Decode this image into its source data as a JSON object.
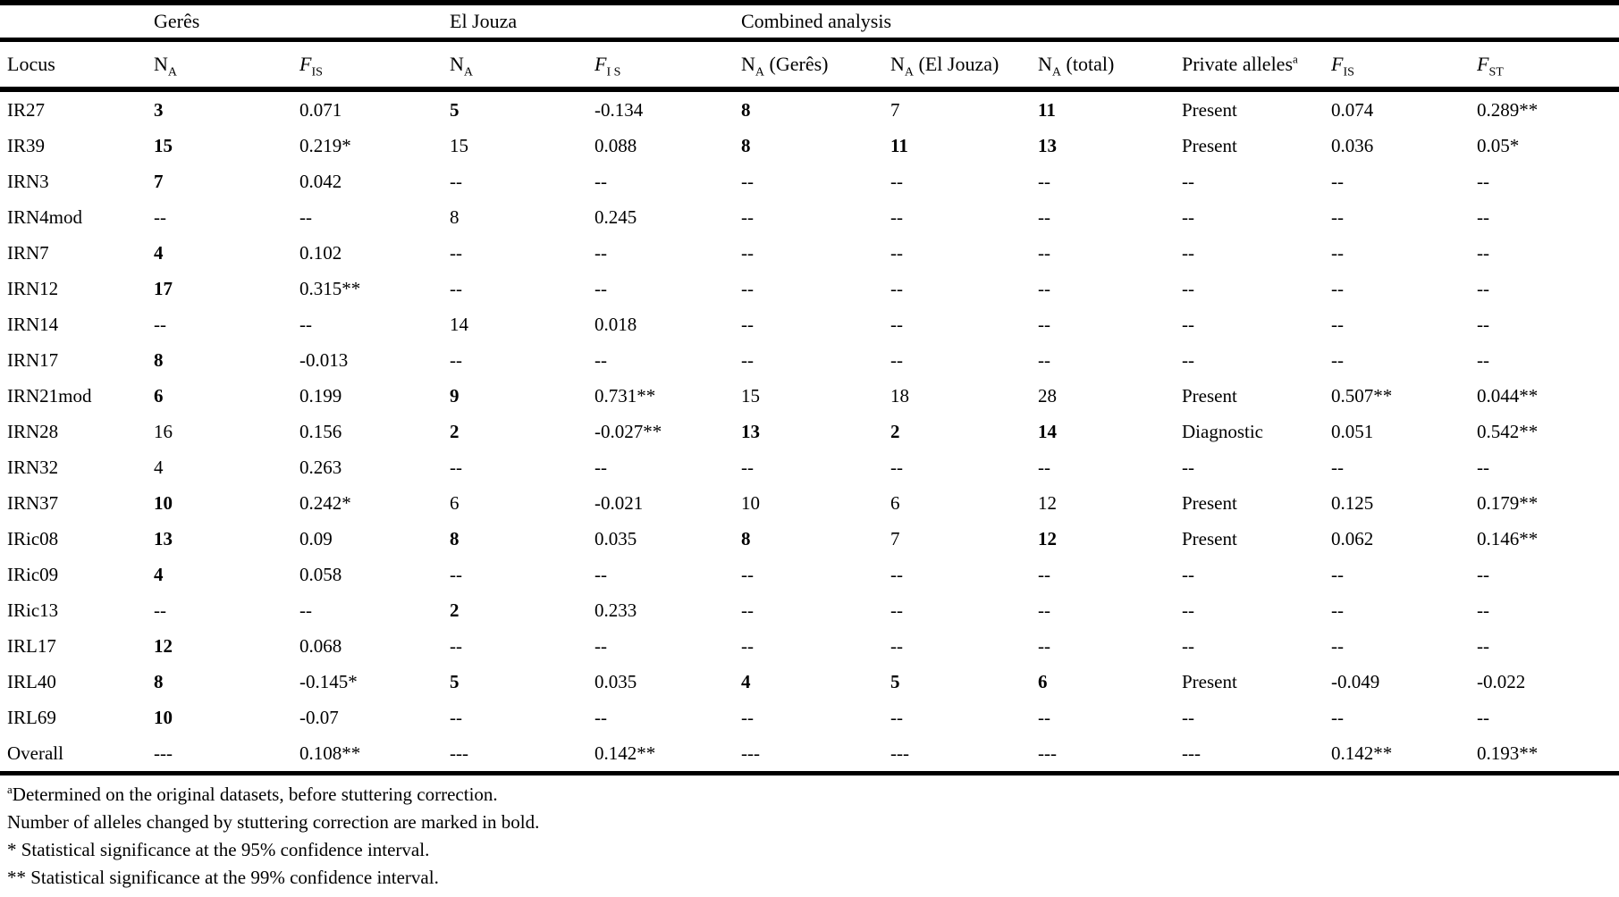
{
  "page": {
    "background": "#ffffff",
    "text_color": "#000000",
    "rule_color": "#000000"
  },
  "table": {
    "group_headers": [
      {
        "label": "",
        "span": 1
      },
      {
        "label": "Gerês",
        "span": 2
      },
      {
        "label": "El Jouza",
        "span": 2
      },
      {
        "label": "Combined analysis",
        "span": 6
      }
    ],
    "columns": [
      {
        "text": "Locus"
      },
      {
        "base": "N",
        "sub": "A",
        "italic": false
      },
      {
        "base": "F",
        "sub": "IS",
        "italic": true
      },
      {
        "base": "N",
        "sub": "A",
        "italic": false
      },
      {
        "base": "F",
        "sub": "I S",
        "italic": true
      },
      {
        "base": "N",
        "sub": "A",
        "rest": " (Gerês)",
        "italic": false
      },
      {
        "base": "N",
        "sub": "A",
        "rest": " (El Jouza)",
        "italic": false
      },
      {
        "base": "N",
        "sub": "A",
        "rest": " (total)",
        "italic": false
      },
      {
        "text": "Private alleles",
        "sup": "a"
      },
      {
        "base": "F",
        "sub": "IS",
        "italic": true
      },
      {
        "base": "F",
        "sub": "ST",
        "italic": true
      }
    ],
    "rows": [
      {
        "locus": "IR27",
        "cells": [
          {
            "t": "3",
            "b": true
          },
          {
            "t": "0.071"
          },
          {
            "t": "5",
            "b": true
          },
          {
            "t": "-0.134"
          },
          {
            "t": "8",
            "b": true
          },
          {
            "t": "7"
          },
          {
            "t": "11",
            "b": true
          },
          {
            "t": "Present"
          },
          {
            "t": "0.074"
          },
          {
            "t": "0.289**"
          }
        ]
      },
      {
        "locus": "IR39",
        "cells": [
          {
            "t": "15",
            "b": true
          },
          {
            "t": "0.219*"
          },
          {
            "t": "15"
          },
          {
            "t": "0.088"
          },
          {
            "t": "8",
            "b": true
          },
          {
            "t": "11",
            "b": true
          },
          {
            "t": "13",
            "b": true
          },
          {
            "t": "Present"
          },
          {
            "t": "0.036"
          },
          {
            "t": "0.05*"
          }
        ]
      },
      {
        "locus": "IRN3",
        "cells": [
          {
            "t": "7",
            "b": true
          },
          {
            "t": "0.042"
          },
          {
            "t": "--"
          },
          {
            "t": "--"
          },
          {
            "t": "--"
          },
          {
            "t": "--"
          },
          {
            "t": "--"
          },
          {
            "t": "--"
          },
          {
            "t": "--"
          },
          {
            "t": "--"
          }
        ]
      },
      {
        "locus": "IRN4mod",
        "cells": [
          {
            "t": "--"
          },
          {
            "t": "--"
          },
          {
            "t": "8"
          },
          {
            "t": "0.245"
          },
          {
            "t": "--"
          },
          {
            "t": "--"
          },
          {
            "t": "--"
          },
          {
            "t": "--"
          },
          {
            "t": "--"
          },
          {
            "t": "--"
          }
        ]
      },
      {
        "locus": "IRN7",
        "cells": [
          {
            "t": "4",
            "b": true
          },
          {
            "t": "0.102"
          },
          {
            "t": "--"
          },
          {
            "t": "--"
          },
          {
            "t": "--"
          },
          {
            "t": "--"
          },
          {
            "t": "--"
          },
          {
            "t": "--"
          },
          {
            "t": "--"
          },
          {
            "t": "--"
          }
        ]
      },
      {
        "locus": "IRN12",
        "cells": [
          {
            "t": "17",
            "b": true
          },
          {
            "t": "0.315**"
          },
          {
            "t": "--"
          },
          {
            "t": "--"
          },
          {
            "t": "--"
          },
          {
            "t": "--"
          },
          {
            "t": "--"
          },
          {
            "t": "--"
          },
          {
            "t": "--"
          },
          {
            "t": "--"
          }
        ]
      },
      {
        "locus": "IRN14",
        "cells": [
          {
            "t": "--"
          },
          {
            "t": "--"
          },
          {
            "t": "14"
          },
          {
            "t": "0.018"
          },
          {
            "t": "--"
          },
          {
            "t": "--"
          },
          {
            "t": "--"
          },
          {
            "t": "--"
          },
          {
            "t": "--"
          },
          {
            "t": "--"
          }
        ]
      },
      {
        "locus": "IRN17",
        "cells": [
          {
            "t": "8",
            "b": true
          },
          {
            "t": "-0.013"
          },
          {
            "t": "--"
          },
          {
            "t": "--"
          },
          {
            "t": "--"
          },
          {
            "t": "--"
          },
          {
            "t": "--"
          },
          {
            "t": "--"
          },
          {
            "t": "--"
          },
          {
            "t": "--"
          }
        ]
      },
      {
        "locus": "IRN21mod",
        "cells": [
          {
            "t": "6",
            "b": true
          },
          {
            "t": "0.199"
          },
          {
            "t": "9",
            "b": true
          },
          {
            "t": "0.731**"
          },
          {
            "t": "15"
          },
          {
            "t": "18"
          },
          {
            "t": "28"
          },
          {
            "t": "Present"
          },
          {
            "t": "0.507**"
          },
          {
            "t": "0.044**"
          }
        ]
      },
      {
        "locus": "IRN28",
        "cells": [
          {
            "t": "16"
          },
          {
            "t": "0.156"
          },
          {
            "t": "2",
            "b": true
          },
          {
            "t": "-0.027**"
          },
          {
            "t": "13",
            "b": true
          },
          {
            "t": "2",
            "b": true
          },
          {
            "t": "14",
            "b": true
          },
          {
            "t": "Diagnostic"
          },
          {
            "t": "0.051"
          },
          {
            "t": "0.542**"
          }
        ]
      },
      {
        "locus": "IRN32",
        "cells": [
          {
            "t": "4"
          },
          {
            "t": "0.263"
          },
          {
            "t": "--"
          },
          {
            "t": "--"
          },
          {
            "t": "--"
          },
          {
            "t": "--"
          },
          {
            "t": "--"
          },
          {
            "t": "--"
          },
          {
            "t": "--"
          },
          {
            "t": "--"
          }
        ]
      },
      {
        "locus": "IRN37",
        "cells": [
          {
            "t": "10",
            "b": true
          },
          {
            "t": "0.242*"
          },
          {
            "t": "6"
          },
          {
            "t": "-0.021"
          },
          {
            "t": "10"
          },
          {
            "t": "6"
          },
          {
            "t": "12"
          },
          {
            "t": "Present"
          },
          {
            "t": "0.125"
          },
          {
            "t": "0.179**"
          }
        ]
      },
      {
        "locus": "IRic08",
        "cells": [
          {
            "t": "13",
            "b": true
          },
          {
            "t": "0.09"
          },
          {
            "t": "8",
            "b": true
          },
          {
            "t": "0.035"
          },
          {
            "t": "8",
            "b": true
          },
          {
            "t": "7"
          },
          {
            "t": "12",
            "b": true
          },
          {
            "t": "Present"
          },
          {
            "t": "0.062"
          },
          {
            "t": "0.146**"
          }
        ]
      },
      {
        "locus": "IRic09",
        "cells": [
          {
            "t": "4",
            "b": true
          },
          {
            "t": "0.058"
          },
          {
            "t": "--"
          },
          {
            "t": "--"
          },
          {
            "t": "--"
          },
          {
            "t": "--"
          },
          {
            "t": "--"
          },
          {
            "t": "--"
          },
          {
            "t": "--"
          },
          {
            "t": "--"
          }
        ]
      },
      {
        "locus": "IRic13",
        "cells": [
          {
            "t": "--"
          },
          {
            "t": "--"
          },
          {
            "t": "2",
            "b": true
          },
          {
            "t": "0.233"
          },
          {
            "t": "--"
          },
          {
            "t": "--"
          },
          {
            "t": "--"
          },
          {
            "t": "--"
          },
          {
            "t": "--"
          },
          {
            "t": "--"
          }
        ]
      },
      {
        "locus": "IRL17",
        "cells": [
          {
            "t": "12",
            "b": true
          },
          {
            "t": "0.068"
          },
          {
            "t": "--"
          },
          {
            "t": "--"
          },
          {
            "t": "--"
          },
          {
            "t": "--"
          },
          {
            "t": "--"
          },
          {
            "t": "--"
          },
          {
            "t": "--"
          },
          {
            "t": "--"
          }
        ]
      },
      {
        "locus": "IRL40",
        "cells": [
          {
            "t": "8",
            "b": true
          },
          {
            "t": "-0.145*"
          },
          {
            "t": "5",
            "b": true
          },
          {
            "t": "0.035"
          },
          {
            "t": "4",
            "b": true
          },
          {
            "t": "5",
            "b": true
          },
          {
            "t": "6",
            "b": true
          },
          {
            "t": "Present"
          },
          {
            "t": "-0.049"
          },
          {
            "t": "-0.022"
          }
        ]
      },
      {
        "locus": "IRL69",
        "cells": [
          {
            "t": "10",
            "b": true
          },
          {
            "t": "-0.07"
          },
          {
            "t": "--"
          },
          {
            "t": "--"
          },
          {
            "t": "--"
          },
          {
            "t": "--"
          },
          {
            "t": "--"
          },
          {
            "t": "--"
          },
          {
            "t": "--"
          },
          {
            "t": "--"
          }
        ]
      },
      {
        "locus": "Overall",
        "cells": [
          {
            "t": "---"
          },
          {
            "t": "0.108**"
          },
          {
            "t": "---"
          },
          {
            "t": "0.142**"
          },
          {
            "t": "---"
          },
          {
            "t": "---"
          },
          {
            "t": "---"
          },
          {
            "t": "---"
          },
          {
            "t": "0.142**"
          },
          {
            "t": "0.193**"
          }
        ]
      }
    ]
  },
  "footnotes": [
    {
      "sup": "a",
      "text": "Determined on the original datasets, before stuttering correction."
    },
    {
      "text": "Number of alleles changed by stuttering correction are marked in bold."
    },
    {
      "text": "* Statistical significance at the 95% confidence interval."
    },
    {
      "text": "** Statistical significance at the 99% confidence interval."
    }
  ]
}
